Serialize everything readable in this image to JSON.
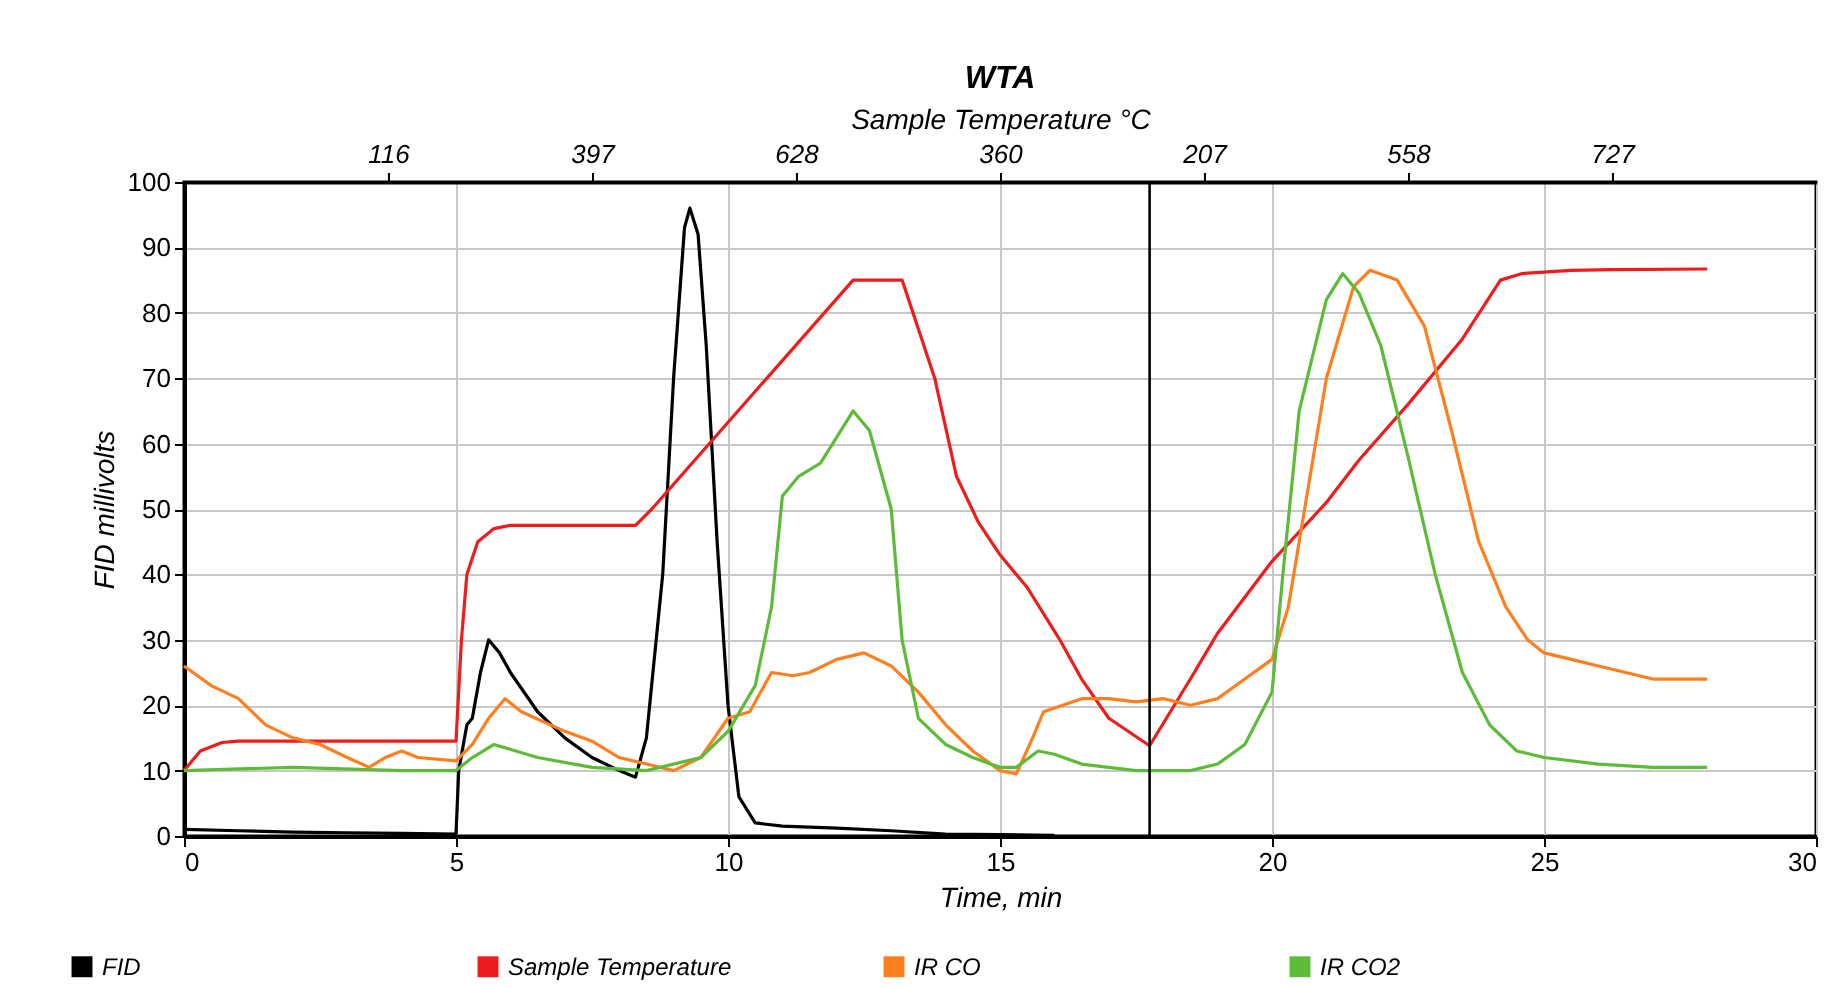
{
  "chart_data": {
    "type": "line",
    "title": "WTA",
    "xlabel": "Time, min",
    "ylabel": "FID millivolts",
    "x2label": "Sample Temperature °C",
    "xlim": [
      0,
      30
    ],
    "xticks": [
      0,
      5,
      10,
      15,
      20,
      25,
      30
    ],
    "ylim": [
      0,
      100
    ],
    "yticks": [
      0,
      10,
      20,
      30,
      40,
      50,
      60,
      70,
      80,
      90,
      100
    ],
    "annotations": [
      {
        "text": "116",
        "x": 3.75
      },
      {
        "text": "397",
        "x": 7.5
      },
      {
        "text": "628",
        "x": 11.25
      },
      {
        "text": "360",
        "x": 15
      },
      {
        "text": "207",
        "x": 18.75
      },
      {
        "text": "558",
        "x": 22.5
      },
      {
        "text": "727",
        "x": 26.25
      }
    ],
    "grid": true,
    "legend": "bottom",
    "marker": "none",
    "ref_lines": [
      {
        "axis": "x",
        "value": 17.75,
        "color": "#000000"
      }
    ],
    "series": [
      {
        "name": "FID",
        "color": "#000000",
        "x": [
          0,
          1,
          2,
          3,
          4,
          5,
          5.05,
          5.2,
          5.3,
          5.45,
          5.6,
          5.8,
          6,
          6.5,
          7,
          7.5,
          8,
          8.3,
          8.5,
          8.8,
          9,
          9.2,
          9.3,
          9.45,
          9.6,
          9.8,
          10,
          10.2,
          10.5,
          11,
          12,
          13,
          14,
          15,
          16
        ],
        "values": [
          1,
          0.8,
          0.6,
          0.5,
          0.4,
          0.3,
          10,
          17,
          18,
          25,
          30,
          28,
          25,
          19,
          15,
          12,
          10,
          9,
          15,
          40,
          70,
          93,
          96,
          92,
          75,
          45,
          20,
          6,
          2,
          1.5,
          1.2,
          0.8,
          0.3,
          0.2,
          0.1
        ]
      },
      {
        "name": "Sample Temperature",
        "color": "#ee1c1c",
        "x": [
          0,
          0.3,
          0.7,
          1,
          5,
          5.1,
          5.2,
          5.4,
          5.7,
          6,
          8.3,
          8.6,
          12.3,
          13.2,
          13.4,
          13.8,
          14.2,
          14.6,
          15,
          15.5,
          15.8,
          16.1,
          16.5,
          17,
          17.75,
          18.5,
          18.75,
          19,
          20,
          21,
          21.6,
          22.5,
          23.5,
          24.2,
          24.6,
          25.5,
          26.25,
          28
        ],
        "values": [
          10,
          13,
          14.3,
          14.5,
          14.5,
          30,
          40,
          45,
          47,
          47.5,
          47.5,
          50,
          85,
          85,
          80,
          70,
          55,
          48,
          43,
          38,
          34,
          30,
          24,
          18,
          13.8,
          24,
          27.5,
          31,
          42,
          51,
          57.5,
          66,
          76,
          85,
          86,
          86.5,
          86.6,
          86.7
        ]
      },
      {
        "name": "IR CO",
        "color": "#ff7f1e",
        "x": [
          0,
          0.5,
          1,
          1.5,
          2,
          2.5,
          3,
          3.4,
          3.7,
          4,
          4.3,
          5,
          5.3,
          5.6,
          5.9,
          6.2,
          7,
          7.5,
          8,
          8.5,
          9,
          9.5,
          10,
          10.4,
          10.8,
          11.2,
          11.5,
          12,
          12.5,
          13,
          13.5,
          14,
          14.5,
          15,
          15.3,
          15.6,
          15.8,
          16.5,
          17,
          17.5,
          18,
          18.5,
          19,
          19.5,
          20,
          20.3,
          20.6,
          21,
          21.5,
          21.8,
          22.3,
          22.8,
          23.3,
          23.8,
          24.3,
          24.7,
          25,
          25.5,
          26,
          26.5,
          27,
          28
        ],
        "values": [
          26,
          23,
          21,
          17,
          15,
          14,
          12,
          10.5,
          12,
          13,
          12,
          11.5,
          14,
          18,
          21,
          19,
          16,
          14.5,
          12,
          11,
          10,
          12,
          18,
          19,
          25,
          24.5,
          25,
          27,
          28,
          26,
          22,
          17,
          13,
          10,
          9.5,
          15,
          19,
          21,
          21,
          20.5,
          21,
          20,
          21,
          24,
          27,
          35,
          50,
          70,
          84,
          86.5,
          85,
          78,
          62,
          45,
          35,
          30,
          28,
          27,
          26,
          25,
          24,
          24
        ]
      },
      {
        "name": "IR CO2",
        "color": "#5dbb3a",
        "x": [
          0,
          2,
          4,
          5,
          5.3,
          5.7,
          6.5,
          7.5,
          8.5,
          9.5,
          10,
          10.5,
          10.8,
          11,
          11.3,
          11.7,
          12,
          12.3,
          12.6,
          13,
          13.2,
          13.5,
          14,
          14.5,
          15,
          15.3,
          15.7,
          16,
          16.5,
          17.5,
          18.5,
          19,
          19.5,
          20,
          20.2,
          20.5,
          21,
          21.3,
          21.6,
          22,
          22.5,
          23,
          23.5,
          24,
          24.5,
          25,
          26,
          27,
          28
        ],
        "values": [
          10,
          10.5,
          10,
          10,
          12,
          14,
          12,
          10.5,
          10,
          12,
          16,
          23,
          35,
          52,
          55,
          57,
          61,
          65,
          62,
          50,
          30,
          18,
          14,
          12,
          10.5,
          10.5,
          13,
          12.5,
          11,
          10,
          10,
          11,
          14,
          22,
          40,
          65,
          82,
          86,
          83,
          75,
          58,
          40,
          25,
          17,
          13,
          12,
          11,
          10.5,
          10.5
        ]
      }
    ]
  }
}
